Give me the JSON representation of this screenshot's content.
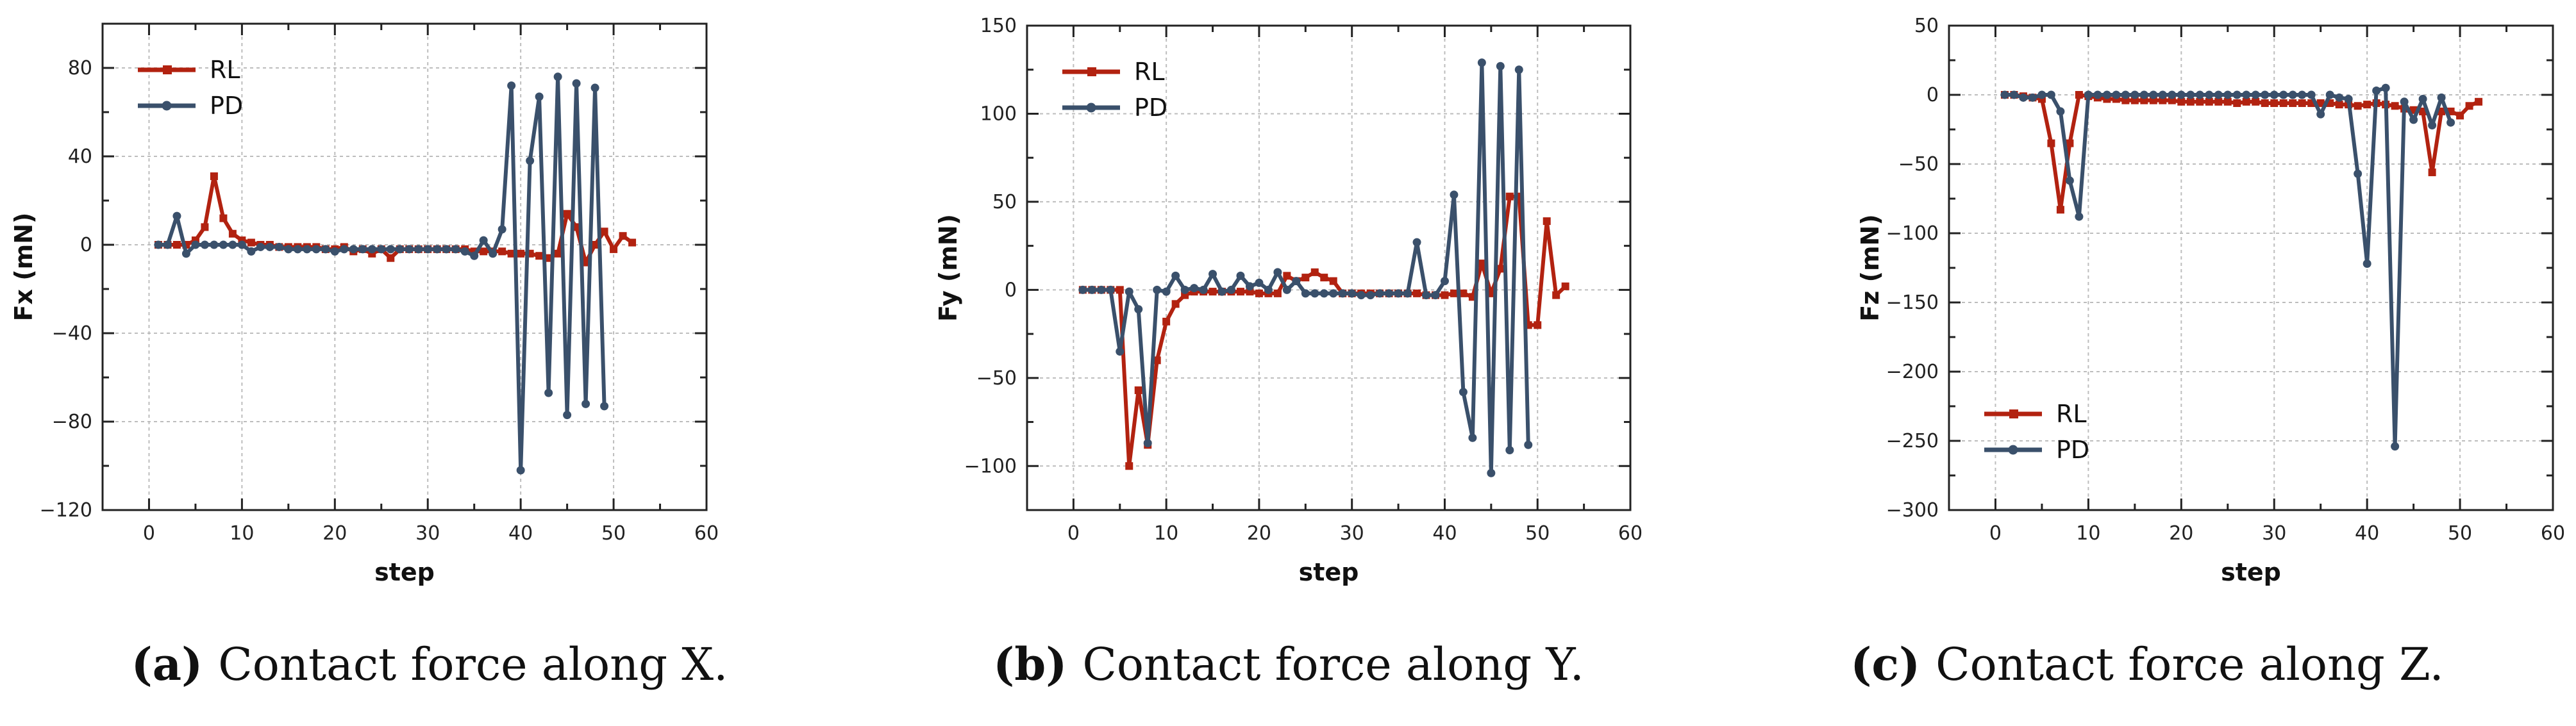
{
  "colors": {
    "rl": "#b22210",
    "pd": "#3a506b",
    "grid": "#bdbdbd",
    "axis": "#222222"
  },
  "captions": [
    {
      "label": "(a)",
      "text": "Contact force along X."
    },
    {
      "label": "(b)",
      "text": "Contact force along Y."
    },
    {
      "label": "(c)",
      "text": "Contact force along Z."
    }
  ],
  "chart_data": [
    {
      "type": "line",
      "title": "",
      "xlabel": "step",
      "ylabel": "Fx (mN)",
      "xlim": [
        -5,
        60
      ],
      "ylim": [
        -120,
        100
      ],
      "xticks": [
        0,
        10,
        20,
        30,
        40,
        50,
        60
      ],
      "yticks": [
        -120,
        -80,
        -40,
        0,
        40,
        80
      ],
      "legend": "top-left",
      "grid": true,
      "series": [
        {
          "name": "RL",
          "x": [
            1,
            2,
            3,
            4,
            5,
            6,
            7,
            8,
            9,
            10,
            11,
            12,
            13,
            14,
            15,
            16,
            17,
            18,
            19,
            20,
            21,
            22,
            23,
            24,
            25,
            26,
            27,
            28,
            29,
            30,
            31,
            32,
            33,
            34,
            35,
            36,
            37,
            38,
            39,
            40,
            41,
            42,
            43,
            44,
            45,
            46,
            47,
            48,
            49,
            50,
            51,
            52
          ],
          "y": [
            0,
            0,
            0,
            0,
            2,
            8,
            31,
            12,
            5,
            2,
            1,
            0,
            0,
            -1,
            -1,
            -1,
            -1,
            -1,
            -2,
            -2,
            -1,
            -3,
            -2,
            -4,
            -2,
            -6,
            -2,
            -2,
            -2,
            -2,
            -2,
            -2,
            -2,
            -2,
            -3,
            -3,
            -3,
            -3,
            -4,
            -4,
            -4,
            -5,
            -6,
            -4,
            14,
            8,
            -8,
            0,
            6,
            -2,
            4,
            1
          ]
        },
        {
          "name": "PD",
          "x": [
            1,
            2,
            3,
            4,
            5,
            6,
            7,
            8,
            9,
            10,
            11,
            12,
            13,
            14,
            15,
            16,
            17,
            18,
            19,
            20,
            21,
            22,
            23,
            24,
            25,
            26,
            27,
            28,
            29,
            30,
            31,
            32,
            33,
            34,
            35,
            36,
            37,
            38,
            39,
            40,
            41,
            42,
            43,
            44,
            45,
            46,
            47,
            48,
            49
          ],
          "y": [
            0,
            0,
            13,
            -4,
            0,
            0,
            0,
            0,
            0,
            0,
            -3,
            -1,
            -1,
            -1,
            -2,
            -2,
            -2,
            -2,
            -2,
            -3,
            -2,
            -2,
            -2,
            -2,
            -2,
            -2,
            -2,
            -2,
            -2,
            -2,
            -2,
            -2,
            -2,
            -3,
            -5,
            2,
            -4,
            7,
            72,
            -102,
            38,
            67,
            -67,
            76,
            -77,
            73,
            -72,
            71,
            -73
          ]
        }
      ]
    },
    {
      "type": "line",
      "title": "",
      "xlabel": "step",
      "ylabel": "Fy (mN)",
      "xlim": [
        -5,
        60
      ],
      "ylim": [
        -125,
        150
      ],
      "xticks": [
        0,
        10,
        20,
        30,
        40,
        50,
        60
      ],
      "yticks": [
        -100,
        -50,
        0,
        50,
        100,
        150
      ],
      "legend": "top-left",
      "grid": true,
      "series": [
        {
          "name": "RL",
          "x": [
            1,
            2,
            3,
            4,
            5,
            6,
            7,
            8,
            9,
            10,
            11,
            12,
            13,
            14,
            15,
            16,
            17,
            18,
            19,
            20,
            21,
            22,
            23,
            24,
            25,
            26,
            27,
            28,
            29,
            30,
            31,
            32,
            33,
            34,
            35,
            36,
            37,
            38,
            39,
            40,
            41,
            42,
            43,
            44,
            45,
            46,
            47,
            48,
            49,
            50,
            51,
            52,
            53
          ],
          "y": [
            0,
            0,
            0,
            0,
            0,
            -100,
            -57,
            -88,
            -40,
            -18,
            -8,
            -3,
            -1,
            -1,
            -1,
            -1,
            -1,
            -1,
            -1,
            -2,
            -2,
            -2,
            8,
            5,
            7,
            10,
            7,
            5,
            -2,
            -2,
            -2,
            -2,
            -2,
            -2,
            -2,
            -2,
            -2,
            -3,
            -3,
            -3,
            -2,
            -2,
            -4,
            15,
            -2,
            12,
            53,
            53,
            -20,
            -20,
            39,
            -3,
            2
          ]
        },
        {
          "name": "PD",
          "x": [
            1,
            2,
            3,
            4,
            5,
            6,
            7,
            8,
            9,
            10,
            11,
            12,
            13,
            14,
            15,
            16,
            17,
            18,
            19,
            20,
            21,
            22,
            23,
            24,
            25,
            26,
            27,
            28,
            29,
            30,
            31,
            32,
            33,
            34,
            35,
            36,
            37,
            38,
            39,
            40,
            41,
            42,
            43,
            44,
            45,
            46,
            47,
            48,
            49
          ],
          "y": [
            0,
            0,
            0,
            0,
            -35,
            -1,
            -11,
            -87,
            0,
            -1,
            8,
            0,
            1,
            0,
            9,
            -1,
            0,
            8,
            2,
            4,
            0,
            10,
            0,
            5,
            -2,
            -2,
            -2,
            -2,
            -2,
            -2,
            -3,
            -3,
            -2,
            -2,
            -2,
            -2,
            27,
            -3,
            -3,
            5,
            54,
            -58,
            -84,
            129,
            -104,
            127,
            -91,
            125,
            -88
          ]
        }
      ]
    },
    {
      "type": "line",
      "title": "",
      "xlabel": "step",
      "ylabel": "Fz (mN)",
      "xlim": [
        -5,
        60
      ],
      "ylim": [
        -300,
        50
      ],
      "xticks": [
        0,
        10,
        20,
        30,
        40,
        50,
        60
      ],
      "yticks": [
        -300,
        -250,
        -200,
        -150,
        -100,
        -50,
        0,
        50
      ],
      "legend": "bottom-left",
      "grid": true,
      "series": [
        {
          "name": "RL",
          "x": [
            1,
            2,
            3,
            4,
            5,
            6,
            7,
            8,
            9,
            10,
            11,
            12,
            13,
            14,
            15,
            16,
            17,
            18,
            19,
            20,
            21,
            22,
            23,
            24,
            25,
            26,
            27,
            28,
            29,
            30,
            31,
            32,
            33,
            34,
            35,
            36,
            37,
            38,
            39,
            40,
            41,
            42,
            43,
            44,
            45,
            46,
            47,
            48,
            49,
            50,
            51,
            52
          ],
          "y": [
            0,
            0,
            -1,
            -2,
            -3,
            -35,
            -83,
            -35,
            0,
            -1,
            -2,
            -3,
            -3,
            -4,
            -4,
            -4,
            -4,
            -4,
            -4,
            -5,
            -5,
            -5,
            -5,
            -5,
            -5,
            -6,
            -5,
            -5,
            -6,
            -6,
            -6,
            -6,
            -6,
            -6,
            -6,
            -6,
            -7,
            -7,
            -8,
            -7,
            -6,
            -7,
            -8,
            -10,
            -11,
            -12,
            -56,
            -12,
            -12,
            -15,
            -8,
            -5
          ]
        },
        {
          "name": "PD",
          "x": [
            1,
            2,
            3,
            4,
            5,
            6,
            7,
            8,
            9,
            10,
            11,
            12,
            13,
            14,
            15,
            16,
            17,
            18,
            19,
            20,
            21,
            22,
            23,
            24,
            25,
            26,
            27,
            28,
            29,
            30,
            31,
            32,
            33,
            34,
            35,
            36,
            37,
            38,
            39,
            40,
            41,
            42,
            43,
            44,
            45,
            46,
            47,
            48,
            49
          ],
          "y": [
            0,
            0,
            -2,
            -2,
            0,
            0,
            -12,
            -62,
            -88,
            0,
            0,
            0,
            0,
            0,
            0,
            0,
            0,
            0,
            0,
            0,
            0,
            0,
            0,
            0,
            0,
            0,
            0,
            0,
            0,
            0,
            0,
            0,
            0,
            0,
            -14,
            0,
            -2,
            -3,
            -57,
            -122,
            3,
            5,
            -254,
            -5,
            -18,
            -3,
            -22,
            -2,
            -20
          ]
        }
      ]
    }
  ]
}
